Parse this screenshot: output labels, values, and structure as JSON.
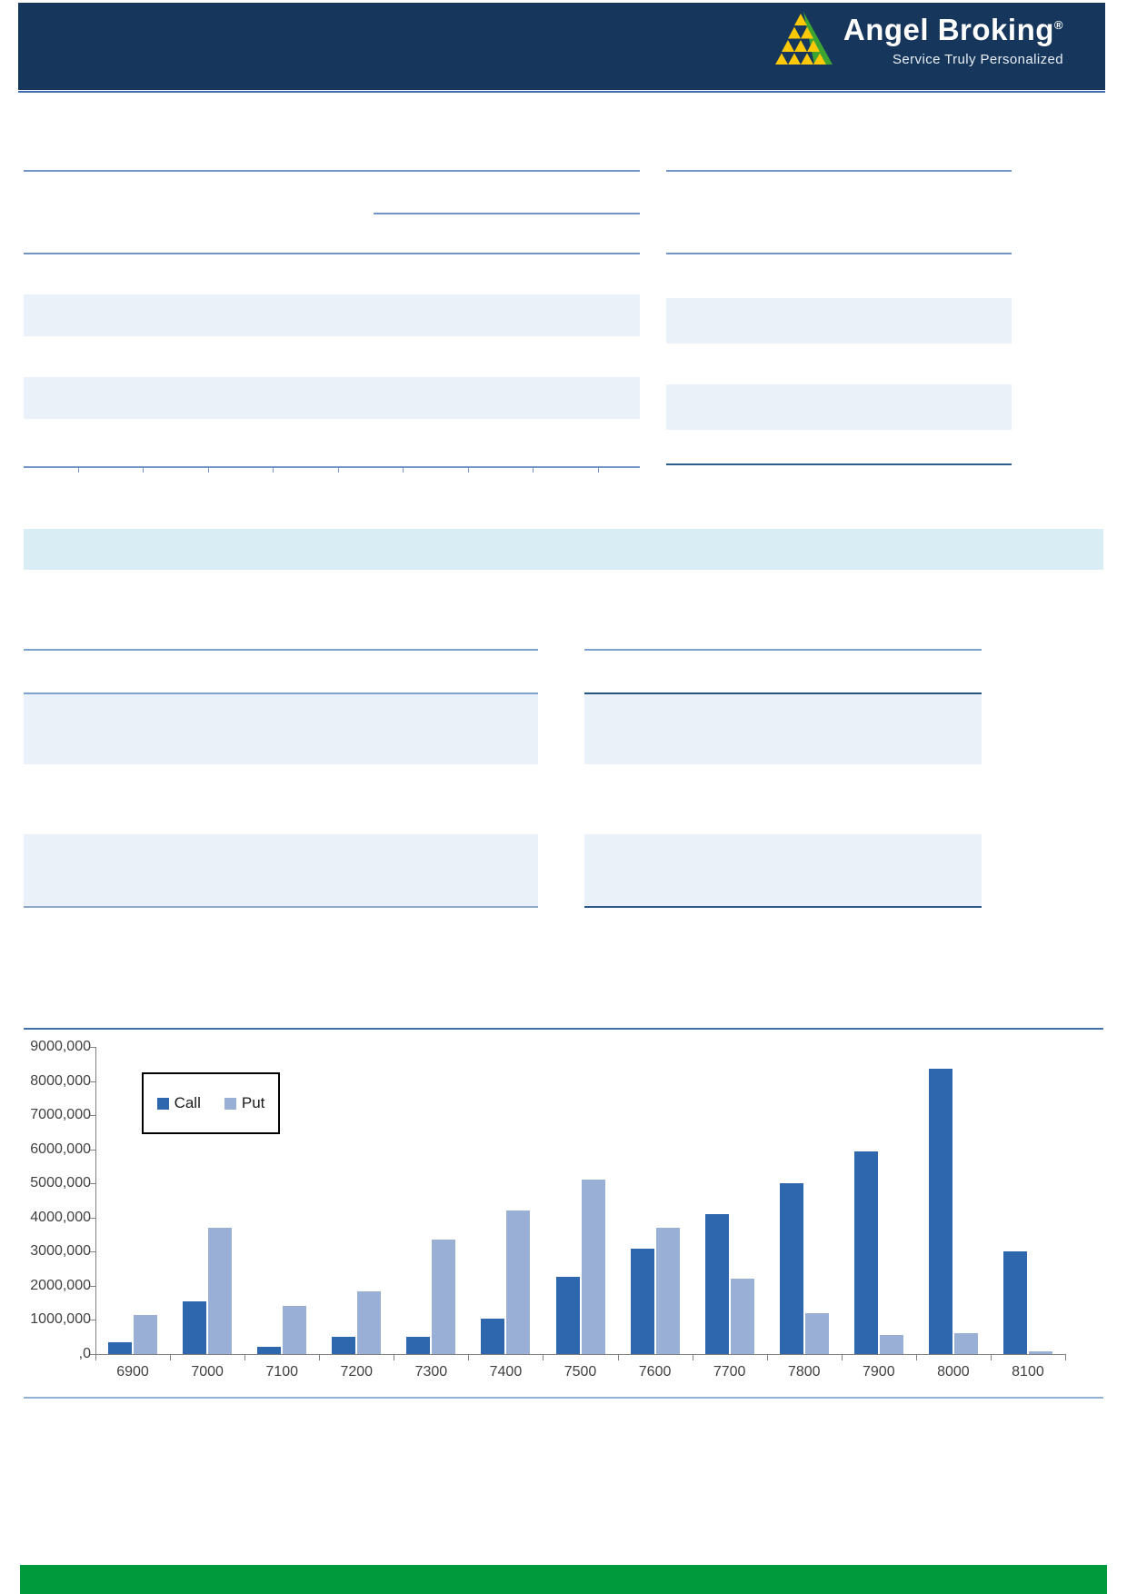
{
  "header": {
    "brand": "Angel Broking",
    "registered": "®",
    "tagline": "Service Truly Personalized"
  },
  "colors": {
    "header_bg": "#16365C",
    "header_underline": "#3E6CB0",
    "footer_green": "#009A3C",
    "logo_yellow": "#FFC907",
    "logo_green": "#3DA432",
    "table_rule_blue": "#7295C6",
    "table_rule_dark": "#2D5C8D",
    "row_band_light": "#EAF1F8",
    "section_strip_cyan": "#D9EDF4",
    "call_bar": "#2F67AE",
    "put_bar": "#9AAFD6",
    "axis_gray": "#808080"
  },
  "chart_data": {
    "type": "bar",
    "title": "",
    "xlabel": "",
    "ylabel": "",
    "categories": [
      "6900",
      "7000",
      "7100",
      "7200",
      "7300",
      "7400",
      "7500",
      "7600",
      "7700",
      "7800",
      "7900",
      "8000",
      "8100"
    ],
    "series": [
      {
        "name": "Call",
        "color": "#2F67AE",
        "values": [
          350000,
          1550000,
          220000,
          500000,
          500000,
          1050000,
          2250000,
          3100000,
          4100000,
          5000000,
          5950000,
          8350000,
          3000000
        ]
      },
      {
        "name": "Put",
        "color": "#9AAFD6",
        "values": [
          1150000,
          3700000,
          1400000,
          1850000,
          3350000,
          4200000,
          5100000,
          3700000,
          2200000,
          1200000,
          550000,
          600000,
          80000
        ]
      }
    ],
    "y_tick_labels": [
      "9000,000",
      "8000,000",
      "7000,000",
      "6000,000",
      "5000,000",
      "4000,000",
      "3000,000",
      "2000,000",
      "1000,000",
      ",0"
    ],
    "ylim": [
      0,
      9000000
    ],
    "grid": false,
    "legend_position": "top-left"
  }
}
